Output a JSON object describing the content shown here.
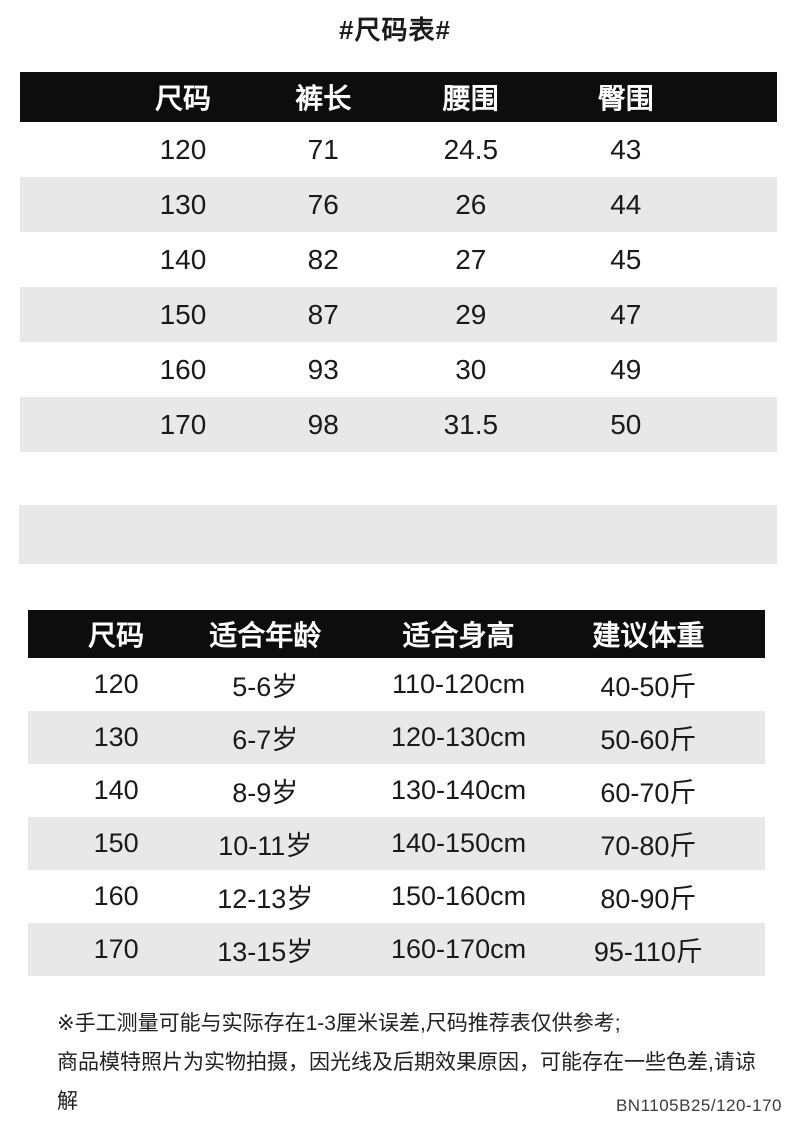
{
  "page": {
    "title": "#尺码表#"
  },
  "colors": {
    "page_bg": "#ffffff",
    "header_bg": "#0d0d0d",
    "header_text": "#ffffff",
    "row_alt_bg": "#e8e8e8",
    "text": "#1a1a1a",
    "note_text": "#222222",
    "code_text": "#3c3c3c"
  },
  "measurement_table": {
    "headers": [
      "尺码",
      "裤长",
      "腰围",
      "臀围"
    ],
    "rows": [
      [
        "120",
        "71",
        "24.5",
        "43"
      ],
      [
        "130",
        "76",
        "26",
        "44"
      ],
      [
        "140",
        "82",
        "27",
        "45"
      ],
      [
        "150",
        "87",
        "29",
        "47"
      ],
      [
        "160",
        "93",
        "30",
        "49"
      ],
      [
        "170",
        "98",
        "31.5",
        "50"
      ]
    ]
  },
  "fit_table": {
    "headers": [
      "尺码",
      "适合年龄",
      "适合身高",
      "建议体重"
    ],
    "rows": [
      [
        "120",
        "5-6岁",
        "110-120cm",
        "40-50斤"
      ],
      [
        "130",
        "6-7岁",
        "120-130cm",
        "50-60斤"
      ],
      [
        "140",
        "8-9岁",
        "130-140cm",
        "60-70斤"
      ],
      [
        "150",
        "10-11岁",
        "140-150cm",
        "70-80斤"
      ],
      [
        "160",
        "12-13岁",
        "150-160cm",
        "80-90斤"
      ],
      [
        "170",
        "13-15岁",
        "160-170cm",
        "95-110斤"
      ]
    ]
  },
  "notes": {
    "line1": "※手工测量可能与实际存在1-3厘米误差,尺码推荐表仅供参考;",
    "line2": "商品模特照片为实物拍摄，因光线及后期效果原因，可能存在一些色差,请谅解"
  },
  "footer_code": "BN1105B25/120-170"
}
